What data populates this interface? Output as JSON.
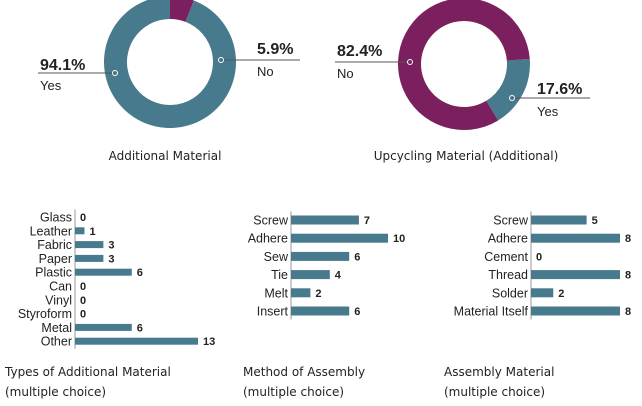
{
  "colors": {
    "teal": "#477a8c",
    "magenta": "#7b1f5e",
    "line": "#555555"
  },
  "chart_data": [
    {
      "type": "pie",
      "title": "Additional Material",
      "slices": [
        {
          "label": "Yes",
          "value": 94.1,
          "display": "94.1%",
          "color": "#477a8c"
        },
        {
          "label": "No",
          "value": 5.9,
          "display": "5.9%",
          "color": "#7b1f5e"
        }
      ]
    },
    {
      "type": "pie",
      "title": "Upcycling Material (Additional)",
      "slices": [
        {
          "label": "No",
          "value": 82.4,
          "display": "82.4%",
          "color": "#7b1f5e"
        },
        {
          "label": "Yes",
          "value": 17.6,
          "display": "17.6%",
          "color": "#477a8c"
        }
      ]
    },
    {
      "type": "bar",
      "orientation": "horizontal",
      "title": "Types of Additional Material",
      "subtitle": "(multiple choice)",
      "categories": [
        "Glass",
        "Leather",
        "Fabric",
        "Paper",
        "Plastic",
        "Can",
        "Vinyl",
        "Styroform",
        "Metal",
        "Other"
      ],
      "values": [
        0,
        1,
        3,
        3,
        6,
        0,
        0,
        0,
        6,
        13
      ],
      "xlim": [
        0,
        13
      ]
    },
    {
      "type": "bar",
      "orientation": "horizontal",
      "title": "Method of Assembly",
      "subtitle": "(multiple choice)",
      "categories": [
        "Screw",
        "Adhere",
        "Sew",
        "Tie",
        "Melt",
        "Insert"
      ],
      "values": [
        7,
        10,
        6,
        4,
        2,
        6
      ],
      "xlim": [
        0,
        10
      ]
    },
    {
      "type": "bar",
      "orientation": "horizontal",
      "title": "Assembly Material",
      "subtitle": "(multiple choice)",
      "categories": [
        "Screw",
        "Adhere",
        "Cement",
        "Thread",
        "Solder",
        "Material Itself"
      ],
      "values": [
        5,
        8,
        0,
        8,
        2,
        8
      ],
      "xlim": [
        0,
        8
      ]
    }
  ]
}
